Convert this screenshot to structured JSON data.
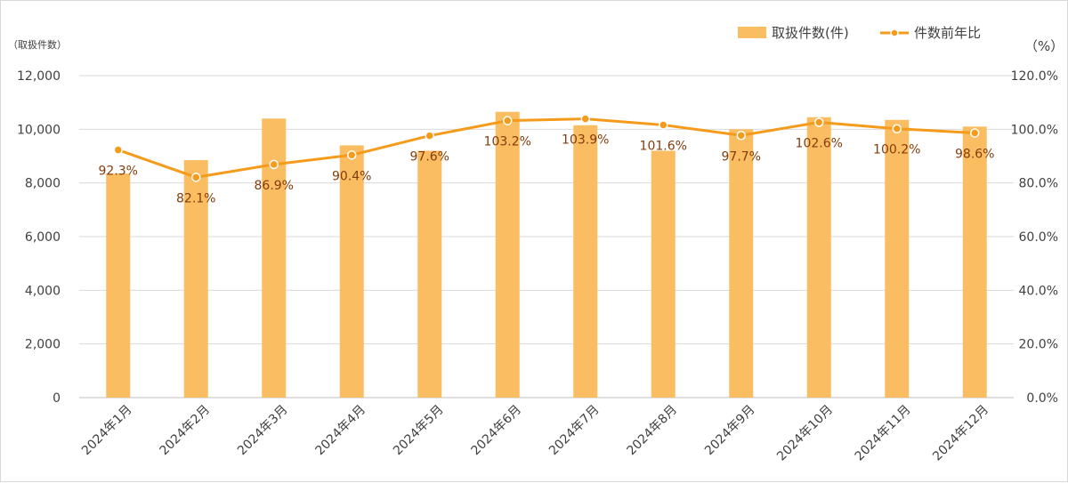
{
  "chart_data": {
    "type": "bar+line",
    "categories": [
      "2024年1月",
      "2024年2月",
      "2024年3月",
      "2024年4月",
      "2024年5月",
      "2024年6月",
      "2024年7月",
      "2024年8月",
      "2024年9月",
      "2024年10月",
      "2024年11月",
      "2024年12月"
    ],
    "series": [
      {
        "name": "取扱件数(件)",
        "type": "bar",
        "axis": "left",
        "values": [
          8350,
          8850,
          10400,
          9400,
          9200,
          10650,
          10150,
          9200,
          10000,
          10450,
          10350,
          10100
        ]
      },
      {
        "name": "件数前年比",
        "type": "line",
        "axis": "right",
        "values": [
          92.3,
          82.1,
          86.9,
          90.4,
          97.6,
          103.2,
          103.9,
          101.6,
          97.7,
          102.6,
          100.2,
          98.6
        ],
        "labels": [
          "92.3%",
          "82.1%",
          "86.9%",
          "90.4%",
          "97.6%",
          "103.2%",
          "103.9%",
          "101.6%",
          "97.7%",
          "102.6%",
          "100.2%",
          "98.6%"
        ]
      }
    ],
    "ylabel": "（取扱件数）",
    "y2label": "（%）",
    "ylim": [
      0,
      12000
    ],
    "y2lim": [
      0,
      120
    ],
    "yticks": [
      "0",
      "2,000",
      "4,000",
      "6,000",
      "8,000",
      "10,000",
      "12,000"
    ],
    "y2ticks": [
      "0.0%",
      "20.0%",
      "40.0%",
      "60.0%",
      "80.0%",
      "100.0%",
      "120.0%"
    ],
    "grid": true,
    "legend_position": "top-right",
    "colors": {
      "bar": "#fbbd62",
      "line": "#f59b1c",
      "grid": "#d9d9d9",
      "label": "#843c0c"
    }
  }
}
